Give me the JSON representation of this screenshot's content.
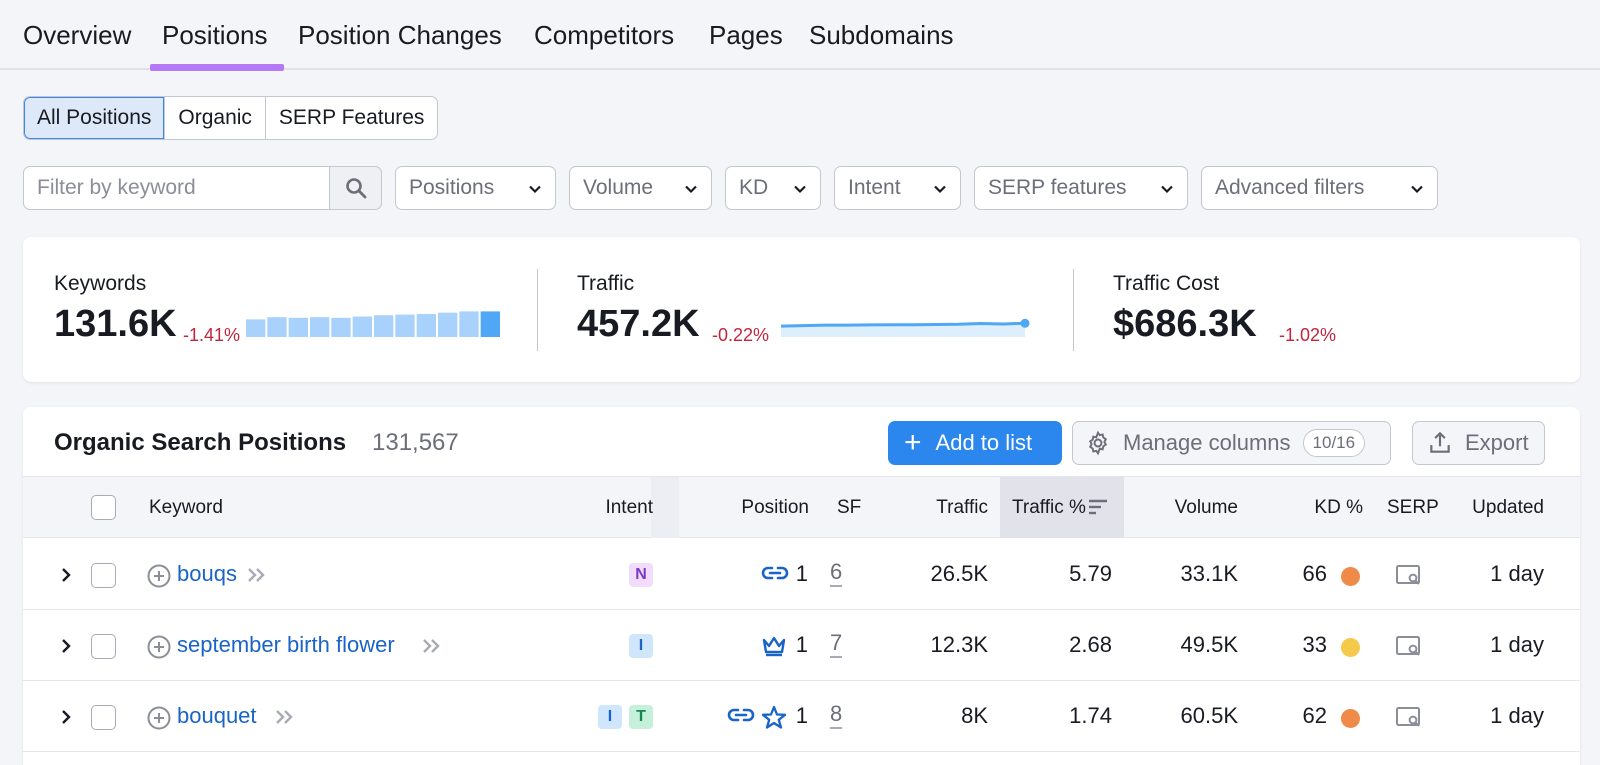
{
  "tabs": [
    "Overview",
    "Positions",
    "Position Changes",
    "Competitors",
    "Pages",
    "Subdomains"
  ],
  "active_tab": "Positions",
  "segments": [
    "All Positions",
    "Organic",
    "SERP Features"
  ],
  "active_segment": "All Positions",
  "filters": {
    "keyword_placeholder": "Filter by keyword",
    "dropdowns": [
      "Positions",
      "Volume",
      "KD",
      "Intent",
      "SERP features",
      "Advanced filters"
    ]
  },
  "summary": {
    "keywords": {
      "label": "Keywords",
      "value": "131.6K",
      "delta": "-1.41%",
      "bars": [
        0.55,
        0.62,
        0.6,
        0.62,
        0.6,
        0.64,
        0.68,
        0.7,
        0.72,
        0.76,
        0.8,
        0.8
      ]
    },
    "traffic": {
      "label": "Traffic",
      "value": "457.2K",
      "delta": "-0.22%",
      "line": [
        0.35,
        0.38,
        0.42,
        0.42,
        0.44,
        0.45,
        0.45,
        0.46,
        0.48,
        0.54,
        0.5,
        0.55
      ]
    },
    "cost": {
      "label": "Traffic Cost",
      "value": "$686.3K",
      "delta": "-1.02%"
    }
  },
  "panel": {
    "title": "Organic Search Positions",
    "count": "131,567",
    "add_label": "Add to list",
    "manage_label": "Manage columns",
    "manage_count": "10/16",
    "export_label": "Export"
  },
  "columns": {
    "keyword": "Keyword",
    "intent": "Intent",
    "position": "Position",
    "sf": "SF",
    "traffic": "Traffic",
    "traffic_pct": "Traffic %",
    "volume": "Volume",
    "kd": "KD %",
    "serp": "SERP",
    "updated": "Updated"
  },
  "rows": [
    {
      "keyword": "bouqs",
      "intents": [
        "N"
      ],
      "icons": [
        "link-icon"
      ],
      "position": "1",
      "sf": "6",
      "traffic": "26.5K",
      "traffic_pct": "5.79",
      "volume": "33.1K",
      "kd": "66",
      "kd_color": "#ef8a48",
      "updated": "1 day"
    },
    {
      "keyword": "september birth flower",
      "intents": [
        "I"
      ],
      "icons": [
        "crown-icon"
      ],
      "position": "1",
      "sf": "7",
      "traffic": "12.3K",
      "traffic_pct": "2.68",
      "volume": "49.5K",
      "kd": "33",
      "kd_color": "#f5c94a",
      "updated": "1 day"
    },
    {
      "keyword": "bouquet",
      "intents": [
        "I",
        "T"
      ],
      "icons": [
        "link-icon",
        "star-icon"
      ],
      "position": "1",
      "sf": "8",
      "traffic": "8K",
      "traffic_pct": "1.74",
      "volume": "60.5K",
      "kd": "62",
      "kd_color": "#ef8a48",
      "updated": "1 day"
    }
  ]
}
